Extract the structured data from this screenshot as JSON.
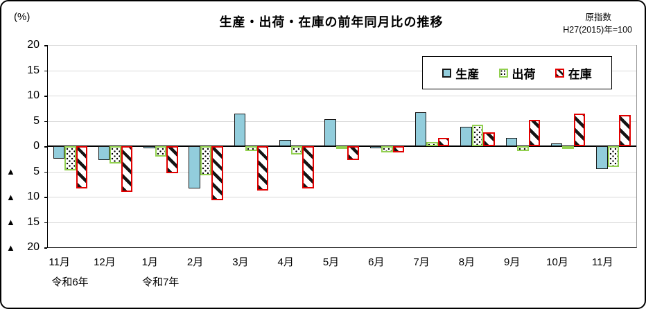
{
  "page": {
    "percent_label": "(%)",
    "note_line1": "原指数",
    "note_line2": "H27(2015)年=100"
  },
  "chart_data": {
    "type": "bar",
    "title": "生産・出荷・在庫の前年同月比の推移",
    "ylabel": "(%)",
    "xlabel": "",
    "ylim": [
      -20,
      20
    ],
    "ytick_step": 5,
    "ytick_labels": [
      "20",
      "15",
      "10",
      "5",
      "0",
      "▲ 5",
      "▲ 10",
      "▲ 15",
      "▲ 20"
    ],
    "negative_marker": "▲",
    "grid": true,
    "legend_position": "top-right",
    "categories": [
      "11月",
      "12月",
      "1月",
      "2月",
      "3月",
      "4月",
      "5月",
      "6月",
      "7月",
      "8月",
      "9月",
      "10月",
      "11月"
    ],
    "year_labels": [
      {
        "slot": 0,
        "text": "令和6年"
      },
      {
        "slot": 2,
        "text": "令和7年"
      }
    ],
    "series": [
      {
        "name": "生産",
        "style": "solid",
        "fill": "#92CDDC",
        "border": "#161616",
        "values": [
          -2.4,
          -2.8,
          -0.4,
          -8.3,
          6.4,
          1.3,
          5.3,
          -0.4,
          6.7,
          3.8,
          1.6,
          0.5,
          -4.5
        ]
      },
      {
        "name": "出荷",
        "style": "dots",
        "fill": "#ffffff",
        "border": "#92D050",
        "values": [
          -4.8,
          -3.4,
          -2.1,
          -5.8,
          -1.0,
          -1.6,
          -0.6,
          -1.3,
          0.8,
          4.2,
          -0.9,
          -0.4,
          -4.1
        ]
      },
      {
        "name": "在庫",
        "style": "diag",
        "fill": "#ffffff",
        "border": "#e10000",
        "values": [
          -8.3,
          -9.0,
          -5.4,
          -10.7,
          -8.7,
          -8.4,
          -2.8,
          -1.3,
          1.6,
          2.7,
          5.2,
          6.4,
          6.1
        ]
      }
    ]
  }
}
